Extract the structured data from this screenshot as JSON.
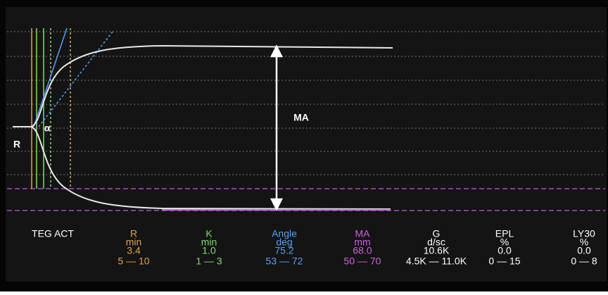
{
  "annotations": {
    "r": "R",
    "alpha": "α",
    "ma": "MA"
  },
  "parameters_label": "TEG ACT",
  "parameters": [
    {
      "name": "R",
      "unit": "min",
      "value": "3.4",
      "range": "5 — 10",
      "color": "#e8a040"
    },
    {
      "name": "K",
      "unit": "min",
      "value": "1.0",
      "range": "1 — 3",
      "color": "#7ddc70"
    },
    {
      "name": "Angle",
      "unit": "deg",
      "value": "75.2",
      "range": "53 — 72",
      "color": "#5aa0f0"
    },
    {
      "name": "MA",
      "unit": "mm",
      "value": "68.0",
      "range": "50 — 70",
      "color": "#d060e0"
    },
    {
      "name": "G",
      "unit": "d/sc",
      "value": "10.6K",
      "range": "4.5K — 11.0K",
      "color": "#ffffff"
    },
    {
      "name": "EPL",
      "unit": "%",
      "value": "0.0",
      "range": "0 — 15",
      "color": "#ffffff"
    },
    {
      "name": "LY30",
      "unit": "%",
      "value": "0.0",
      "range": "0 — 8",
      "color": "#ffffff"
    }
  ]
}
